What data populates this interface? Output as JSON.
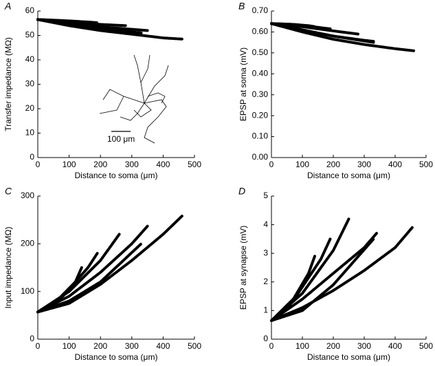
{
  "chart_data": [
    {
      "type": "line",
      "panel_label": "A",
      "xlabel": "Distance to soma (μm)",
      "ylabel": "Transfer impedance (MΩ)",
      "xlim": [
        0,
        500
      ],
      "ylim": [
        0,
        60
      ],
      "xticks": [
        0,
        100,
        200,
        300,
        400,
        500
      ],
      "yticks": [
        0,
        10,
        20,
        30,
        40,
        50,
        60
      ],
      "scale_bar_label": "100 μm",
      "series": [
        {
          "color": "#000000",
          "x": [
            0,
            100,
            200,
            300,
            400,
            460
          ],
          "values": [
            56.5,
            54,
            52,
            50.5,
            49,
            48.5
          ]
        },
        {
          "color": "#000000",
          "x": [
            0,
            100,
            200,
            300,
            350
          ],
          "values": [
            56.5,
            55,
            53.5,
            52.5,
            52
          ]
        },
        {
          "color": "#000000",
          "x": [
            0,
            100,
            200,
            280
          ],
          "values": [
            56.5,
            55.5,
            54.5,
            54
          ]
        },
        {
          "color": "#000000",
          "x": [
            0,
            80,
            160,
            190
          ],
          "values": [
            56.5,
            56,
            55.5,
            55.2
          ]
        },
        {
          "color": "#000000",
          "x": [
            0,
            60,
            120,
            140
          ],
          "values": [
            56.5,
            56.2,
            55.8,
            55.6
          ]
        },
        {
          "color": "#000000",
          "x": [
            0,
            100,
            200,
            330
          ],
          "values": [
            56.5,
            54.5,
            53,
            51
          ]
        }
      ]
    },
    {
      "type": "line",
      "panel_label": "B",
      "xlabel": "Distance to soma (μm)",
      "ylabel": "EPSP at soma (mV)",
      "xlim": [
        0,
        500
      ],
      "ylim": [
        0,
        0.7
      ],
      "xticks": [
        0,
        100,
        200,
        300,
        400,
        500
      ],
      "yticks": [
        {
          "value": 0,
          "label": "0.00"
        },
        {
          "value": 0.1,
          "label": "0.10"
        },
        {
          "value": 0.2,
          "label": "0.20"
        },
        {
          "value": 0.3,
          "label": "0.30"
        },
        {
          "value": 0.4,
          "label": "0.40"
        },
        {
          "value": 0.5,
          "label": "0.50"
        },
        {
          "value": 0.6,
          "label": "0.60"
        },
        {
          "value": 0.7,
          "label": "0.70"
        }
      ],
      "series": [
        {
          "color": "#000000",
          "x": [
            0,
            100,
            200,
            300,
            400,
            460
          ],
          "values": [
            0.64,
            0.6,
            0.565,
            0.54,
            0.52,
            0.51
          ]
        },
        {
          "color": "#000000",
          "x": [
            0,
            100,
            200,
            300,
            330
          ],
          "values": [
            0.64,
            0.61,
            0.58,
            0.56,
            0.555
          ]
        },
        {
          "color": "#000000",
          "x": [
            0,
            100,
            200,
            280
          ],
          "values": [
            0.64,
            0.625,
            0.605,
            0.59
          ]
        },
        {
          "color": "#000000",
          "x": [
            0,
            80,
            160,
            190
          ],
          "values": [
            0.64,
            0.635,
            0.62,
            0.615
          ]
        },
        {
          "color": "#000000",
          "x": [
            0,
            60,
            120,
            140
          ],
          "values": [
            0.64,
            0.637,
            0.63,
            0.625
          ]
        },
        {
          "color": "#000000",
          "x": [
            0,
            100,
            200,
            330
          ],
          "values": [
            0.64,
            0.61,
            0.58,
            0.55
          ]
        }
      ]
    },
    {
      "type": "line",
      "panel_label": "C",
      "xlabel": "Distance to soma (μm)",
      "ylabel": "Input impedance (MΩ)",
      "xlim": [
        0,
        500
      ],
      "ylim": [
        0,
        300
      ],
      "xticks": [
        0,
        100,
        200,
        300,
        400,
        500
      ],
      "yticks": [
        0,
        100,
        200,
        300
      ],
      "series": [
        {
          "color": "#000000",
          "x": [
            0,
            100,
            200,
            300,
            400,
            460
          ],
          "values": [
            57,
            75,
            115,
            165,
            220,
            258
          ]
        },
        {
          "color": "#000000",
          "x": [
            0,
            100,
            200,
            300,
            350
          ],
          "values": [
            57,
            90,
            140,
            200,
            237
          ]
        },
        {
          "color": "#000000",
          "x": [
            0,
            100,
            200,
            260
          ],
          "values": [
            57,
            100,
            165,
            220
          ]
        },
        {
          "color": "#000000",
          "x": [
            0,
            80,
            160,
            190
          ],
          "values": [
            57,
            90,
            150,
            180
          ]
        },
        {
          "color": "#000000",
          "x": [
            0,
            60,
            120,
            140
          ],
          "values": [
            57,
            80,
            120,
            150
          ]
        },
        {
          "color": "#000000",
          "x": [
            0,
            100,
            200,
            330
          ],
          "values": [
            57,
            80,
            120,
            200
          ]
        }
      ]
    },
    {
      "type": "line",
      "panel_label": "D",
      "xlabel": "Distance to soma (μm)",
      "ylabel": "EPSP at synapse (mV)",
      "xlim": [
        0,
        500
      ],
      "ylim": [
        0,
        5
      ],
      "xticks": [
        0,
        100,
        200,
        300,
        400,
        500
      ],
      "yticks": [
        0,
        1,
        2,
        3,
        4,
        5
      ],
      "series": [
        {
          "color": "#000000",
          "x": [
            0,
            100,
            200,
            300,
            400,
            455
          ],
          "values": [
            0.65,
            1.1,
            1.7,
            2.4,
            3.2,
            3.9
          ]
        },
        {
          "color": "#000000",
          "x": [
            0,
            100,
            200,
            300,
            340
          ],
          "values": [
            0.65,
            1.4,
            2.3,
            3.2,
            3.7
          ]
        },
        {
          "color": "#000000",
          "x": [
            0,
            100,
            200,
            250
          ],
          "values": [
            0.65,
            1.6,
            3.1,
            4.2
          ]
        },
        {
          "color": "#000000",
          "x": [
            0,
            80,
            160,
            190
          ],
          "values": [
            0.65,
            1.5,
            2.8,
            3.5
          ]
        },
        {
          "color": "#000000",
          "x": [
            0,
            60,
            120,
            140
          ],
          "values": [
            0.65,
            1.2,
            2.3,
            2.9
          ]
        },
        {
          "color": "#000000",
          "x": [
            0,
            100,
            200,
            330
          ],
          "values": [
            0.65,
            1.0,
            1.9,
            3.5
          ]
        }
      ]
    }
  ]
}
